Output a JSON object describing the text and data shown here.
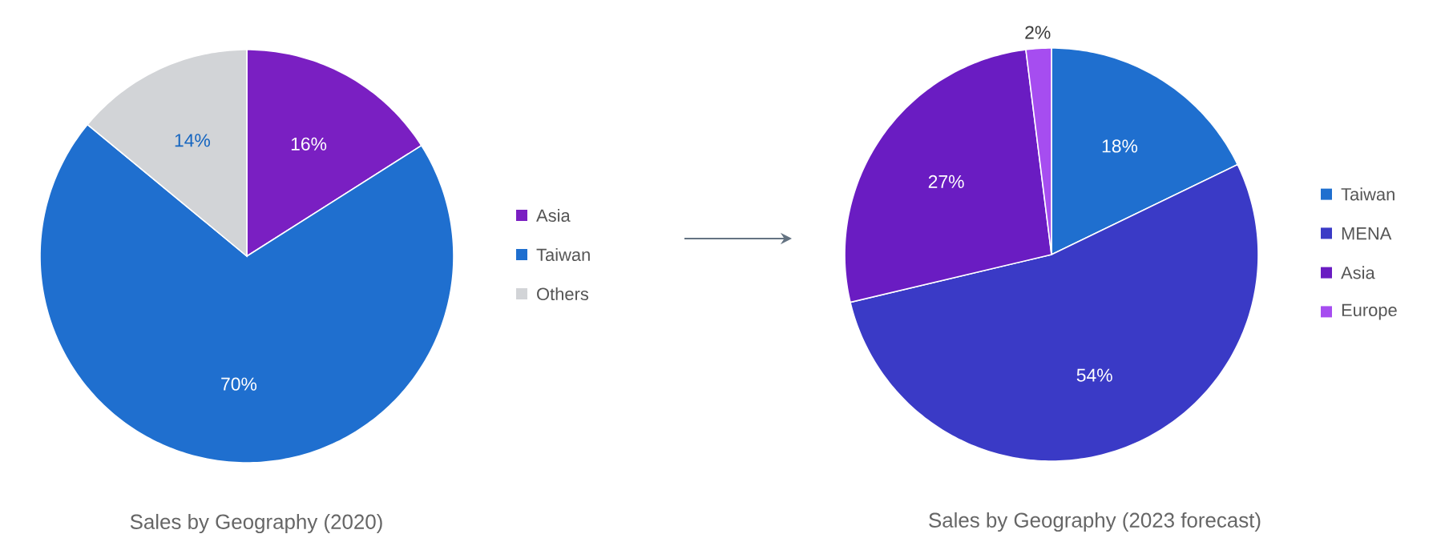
{
  "chart_data": [
    {
      "type": "pie",
      "title": "Sales by Geography (2020)",
      "categories": [
        "Asia",
        "Taiwan",
        "Others"
      ],
      "values": [
        16,
        70,
        14
      ],
      "value_labels": [
        "16%",
        "70%",
        "14%"
      ],
      "colors": [
        "#7a1fc2",
        "#1f6fcf",
        "#d2d4d7"
      ],
      "legend": "right"
    },
    {
      "type": "pie",
      "title": "Sales by Geography (2023 forecast)",
      "categories": [
        "Taiwan",
        "MENA",
        "Asia",
        "Europe"
      ],
      "values": [
        18,
        54,
        27,
        2
      ],
      "value_labels": [
        "18%",
        "54%",
        "27%",
        "2%"
      ],
      "colors": [
        "#1f6fcf",
        "#3a3ac6",
        "#6a1cc2",
        "#a64df0"
      ],
      "legend": "right"
    }
  ]
}
